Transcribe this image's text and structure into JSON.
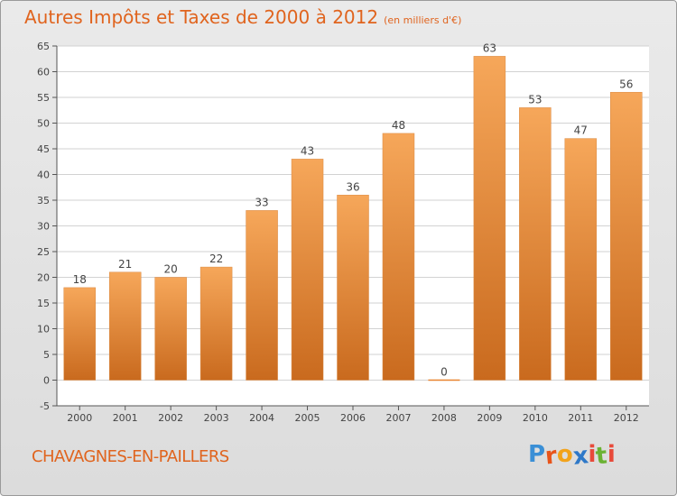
{
  "title": "Autres Impôts et Taxes de 2000 à 2012",
  "subtitle": "(en milliers d'€)",
  "commune": "CHAVAGNES-EN-PAILLERS",
  "brand": {
    "letters": [
      "P",
      "r",
      "o",
      "x",
      "i",
      "t",
      "i"
    ],
    "colors": [
      "#3a8fd6",
      "#e8541a",
      "#f2a31b",
      "#2e78c8",
      "#e84a3a",
      "#6bb233",
      "#e84a3a"
    ]
  },
  "colors": {
    "bar_top": "#f6a75a",
    "bar_bottom": "#c96a1e",
    "title": "#e0641e",
    "grid": "#d2d2d2",
    "plot_bg": "#ffffff"
  },
  "chart_data": {
    "type": "bar",
    "categories": [
      "2000",
      "2001",
      "2002",
      "2003",
      "2004",
      "2005",
      "2006",
      "2007",
      "2008",
      "2009",
      "2010",
      "2011",
      "2012"
    ],
    "values": [
      18,
      21,
      20,
      22,
      33,
      43,
      36,
      48,
      0,
      63,
      53,
      47,
      56
    ],
    "y_ticks": [
      -5,
      0,
      5,
      10,
      15,
      20,
      25,
      30,
      35,
      40,
      45,
      50,
      55,
      60,
      65
    ],
    "ylim": [
      -5,
      65
    ],
    "grid": true,
    "legend": "none",
    "xlabel": "",
    "ylabel": ""
  }
}
